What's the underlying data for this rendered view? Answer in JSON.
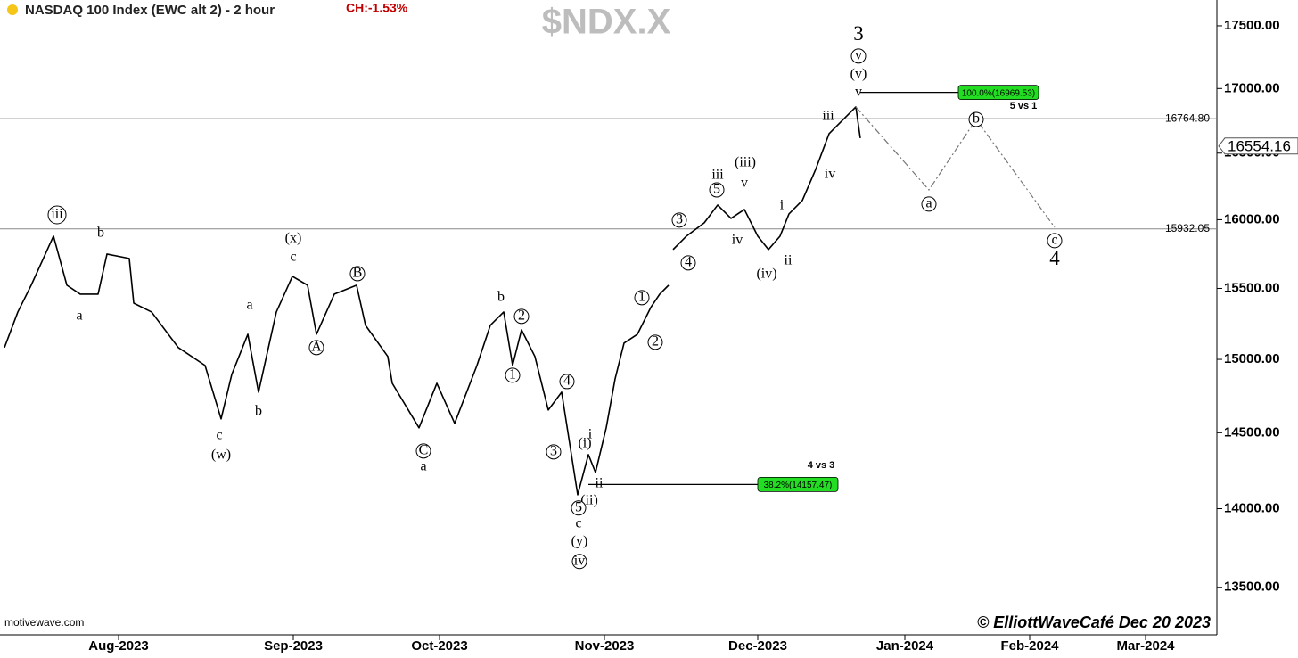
{
  "chart_data": {
    "type": "line",
    "title": "NASDAQ 100 Index (EWC alt 2) - 2 hour",
    "change": "CH:-1.53%",
    "symbol": "$NDX.X",
    "source": "motivewave.com",
    "credit": "© ElliottWaveCafé Dec 20 2023",
    "log_scale": true,
    "color": "#000000",
    "xlim": [
      0,
      1365
    ],
    "xticks": [
      {
        "value": 133,
        "label": "Aug-2023"
      },
      {
        "value": 329,
        "label": "Sep-2023"
      },
      {
        "value": 493,
        "label": "Oct-2023"
      },
      {
        "value": 678,
        "label": "Nov-2023"
      },
      {
        "value": 850,
        "label": "Dec-2023"
      },
      {
        "value": 1015,
        "label": "Jan-2024"
      },
      {
        "value": 1155,
        "label": "Feb-2024"
      },
      {
        "value": 1285,
        "label": "Mar-2024"
      }
    ],
    "ylim": [
      13207,
      17710
    ],
    "yticks": [
      {
        "value": 17500,
        "label": "17500.00"
      },
      {
        "value": 17000,
        "label": "17000.00"
      },
      {
        "value": 16500,
        "label": "16500.00"
      },
      {
        "value": 16000,
        "label": "16000.00"
      },
      {
        "value": 15500,
        "label": "15500.00"
      },
      {
        "value": 15000,
        "label": "15000.00"
      },
      {
        "value": 14500,
        "label": "14500.00"
      },
      {
        "value": 14000,
        "label": "14000.00"
      },
      {
        "value": 13500,
        "label": "13500.00"
      }
    ],
    "series": [
      {
        "x": [
          5,
          20,
          35,
          60,
          75,
          90,
          110,
          120,
          145,
          150,
          170,
          200,
          230,
          248,
          260,
          278,
          290,
          300,
          310,
          328,
          345,
          355,
          375,
          400,
          410,
          435,
          440,
          470,
          490,
          510,
          535,
          550,
          565,
          575,
          585,
          600,
          615,
          630,
          648,
          660,
          668,
          680,
          690,
          700,
          715,
          730,
          740,
          750,
          752,
          755,
          770,
          790,
          805,
          820,
          835,
          850,
          862,
          875,
          885,
          900,
          915,
          930,
          945,
          960,
          965
        ],
        "values": [
          15082,
          15332,
          15523,
          15879,
          15523,
          15459,
          15459,
          15748,
          15716,
          15395,
          15332,
          15082,
          14958,
          14593,
          14896,
          15175,
          14774,
          15051,
          15332,
          15587,
          15523,
          15175,
          15459,
          15523,
          15238,
          15020,
          14835,
          14533,
          14835,
          14563,
          14958,
          15238,
          15332,
          14958,
          15206,
          15020,
          14653,
          14774,
          14090,
          14354,
          14236,
          14533,
          14866,
          15113,
          15175,
          15364,
          15459,
          15523,
          null,
          15781,
          15879,
          15977,
          16109,
          16010,
          16076,
          15879,
          15781,
          15879,
          16043,
          16143,
          16377,
          16649,
          16752,
          16856,
          16615
        ]
      }
    ],
    "projection": {
      "x": [
        960,
        1042,
        1095,
        1183
      ],
      "values": [
        16856,
        16222,
        16759,
        15944
      ]
    },
    "levels": [
      {
        "value": 16764.8,
        "label": "16764.80"
      },
      {
        "value": 15932.05,
        "label": "15932.05"
      }
    ],
    "last_price": 16554.16,
    "targets": [
      {
        "value": 16969.53,
        "label": "100.0%(16969.53)",
        "x": [
          965,
          1165
        ]
      },
      {
        "value": 14157.47,
        "label": "38.2%(14157.47)",
        "x": [
          660,
          940
        ]
      }
    ],
    "annotations": [
      {
        "text": "iii",
        "x": 64,
        "y": 16036,
        "circled": true
      },
      {
        "text": "b",
        "x": 113,
        "y": 15898
      },
      {
        "text": "a",
        "x": 89,
        "y": 15301
      },
      {
        "text": "c",
        "x": 246,
        "y": 14479
      },
      {
        "text": "(w)",
        "x": 248,
        "y": 14348
      },
      {
        "text": "b",
        "x": 290,
        "y": 14641
      },
      {
        "text": "a",
        "x": 280,
        "y": 15376
      },
      {
        "text": "(x)",
        "x": 329,
        "y": 15859
      },
      {
        "text": "c",
        "x": 329,
        "y": 15722
      },
      {
        "text": "B",
        "x": 401,
        "y": 15606,
        "circled": true
      },
      {
        "text": "A",
        "x": 355,
        "y": 15082,
        "circled": true
      },
      {
        "text": "C",
        "x": 475,
        "y": 14378,
        "circled": true
      },
      {
        "text": "a",
        "x": 475,
        "y": 14271
      },
      {
        "text": "b",
        "x": 562,
        "y": 15434
      },
      {
        "text": "2",
        "x": 585,
        "y": 15301,
        "circled": true
      },
      {
        "text": "1",
        "x": 575,
        "y": 14890,
        "circled": true
      },
      {
        "text": "4",
        "x": 636,
        "y": 14847,
        "circled": true
      },
      {
        "text": "3",
        "x": 621,
        "y": 14372,
        "circled": true
      },
      {
        "text": "(i)",
        "x": 656,
        "y": 14425
      },
      {
        "text": "i",
        "x": 662,
        "y": 14485
      },
      {
        "text": "ii",
        "x": 672,
        "y": 14160
      },
      {
        "text": "(ii)",
        "x": 661,
        "y": 14050
      },
      {
        "text": "5",
        "x": 649,
        "y": 14004,
        "circled": true
      },
      {
        "text": "c",
        "x": 649,
        "y": 13900
      },
      {
        "text": "(y)",
        "x": 650,
        "y": 13786
      },
      {
        "text": "iv",
        "x": 650,
        "y": 13662,
        "circled": true
      },
      {
        "text": "1",
        "x": 720,
        "y": 15434,
        "circled": true
      },
      {
        "text": "2",
        "x": 735,
        "y": 15119,
        "circled": true
      },
      {
        "text": "3",
        "x": 762,
        "y": 15997,
        "circled": true
      },
      {
        "text": "4",
        "x": 772,
        "y": 15684,
        "circled": true
      },
      {
        "text": "iii",
        "x": 805,
        "y": 16330
      },
      {
        "text": "5",
        "x": 804,
        "y": 16222,
        "circled": true
      },
      {
        "text": "iv",
        "x": 827,
        "y": 15846
      },
      {
        "text": "(iii)",
        "x": 836,
        "y": 16424
      },
      {
        "text": "v",
        "x": 835,
        "y": 16269
      },
      {
        "text": "i",
        "x": 877,
        "y": 16103
      },
      {
        "text": "ii",
        "x": 884,
        "y": 15696
      },
      {
        "text": "(iv)",
        "x": 860,
        "y": 15600
      },
      {
        "text": "iii",
        "x": 929,
        "y": 16780
      },
      {
        "text": "iv",
        "x": 931,
        "y": 16336
      },
      {
        "text": "v",
        "x": 963,
        "y": 16967
      },
      {
        "text": "(v)",
        "x": 963,
        "y": 17108
      },
      {
        "text": "v",
        "x": 963,
        "y": 17257,
        "circled": true
      },
      {
        "text": "3",
        "x": 963,
        "y": 17421,
        "size": "large"
      },
      {
        "text": "a",
        "x": 1042,
        "y": 16116,
        "circled": true
      },
      {
        "text": "b",
        "x": 1095,
        "y": 16759,
        "circled": true
      },
      {
        "text": "c",
        "x": 1183,
        "y": 15846,
        "circled": true
      },
      {
        "text": "4",
        "x": 1183,
        "y": 15703,
        "size": "large"
      },
      {
        "text": "5 vs 1",
        "x": 1148,
        "y": 16863,
        "size": "small"
      },
      {
        "text": "4 vs 3",
        "x": 921,
        "y": 14283,
        "size": "small"
      }
    ]
  }
}
